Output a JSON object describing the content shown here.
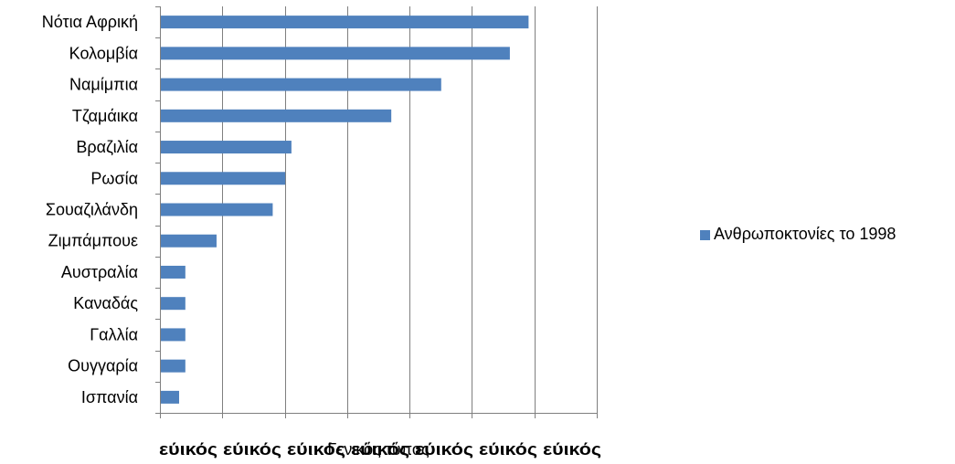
{
  "chart_data": {
    "type": "bar",
    "orientation": "horizontal",
    "categories": [
      "Νότια Αφρική",
      "Κολομβία",
      "Ναμίμπια",
      "Τζαμάικα",
      "Βραζιλία",
      "Ρωσία",
      "Σουαζιλάνδη",
      "Ζιμπάμπουε",
      "Αυστραλία",
      "Καναδάς",
      "Γαλλία",
      "Ουγγαρία",
      "Ισπανία"
    ],
    "series": [
      {
        "name": "Ανθρωποκτονίες το 1998",
        "values": [
          59,
          56,
          45,
          37,
          21,
          20,
          18,
          9,
          4,
          4,
          4,
          4,
          3
        ],
        "color": "#4F81BD"
      }
    ],
    "xlim": [
      0,
      70
    ],
    "x_tick_step": 10,
    "x_tick_labels_shown": false,
    "xlabel": "Γενικός τύπος",
    "xlabel_overlay": "εύικός εύικός εύικός εύικός εύικός εύικός εύικός",
    "grid": "vertical",
    "legend_position": "right",
    "gridline_color": "#7F7F7F"
  }
}
